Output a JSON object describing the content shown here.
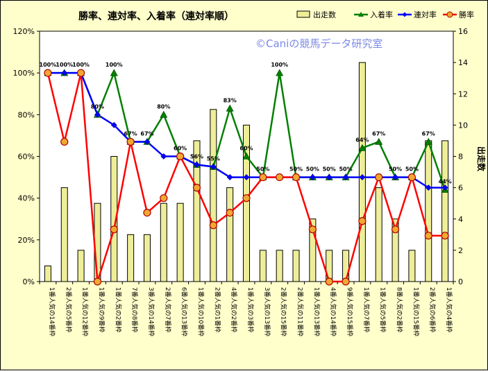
{
  "chart_data": {
    "type": "bar+line",
    "title": "勝率、連対率、入着率（連対率順）",
    "watermark": "©Caniの競馬データ研究室",
    "y2label": "出走数",
    "ylim": [
      0,
      120
    ],
    "y2lim": [
      0,
      16
    ],
    "yticks": [
      "0%",
      "20%",
      "40%",
      "60%",
      "80%",
      "100%",
      "120%"
    ],
    "y2ticks": [
      "0",
      "2",
      "4",
      "6",
      "8",
      "10",
      "12",
      "14",
      "16"
    ],
    "categories": [
      "1番人気の14番枠",
      "2番人気の5番枠",
      "1番人気の12番枠",
      "1番人気の9番枠",
      "1番人気の2番枠",
      "7番人気の8番枠",
      "3番人気の14番枠",
      "2番人気の7番枠",
      "6番人気の13番枠",
      "1番人気の10番枠",
      "2番人気の1番枠",
      "4番人気の2番枠",
      "1番人気の3番枠",
      "3番人気の13番枠",
      "2番人気の15番枠",
      "2番人気の11番枠",
      "1番人気の13番枠",
      "4番人気の14番枠",
      "9番人気の15番枠",
      "1番人気の7番枠",
      "1番人気の5番枠",
      "8番人気の2番枠",
      "1番人気の15番枠",
      "2番人気の6番枠",
      "1番人気の4番枠"
    ],
    "series": [
      {
        "name": "出走数",
        "kind": "bar",
        "axis": "right",
        "color": "#eeee99",
        "values": [
          1,
          6,
          2,
          5,
          8,
          3,
          3,
          5,
          5,
          9,
          11,
          6,
          10,
          2,
          2,
          2,
          4,
          2,
          2,
          14,
          6,
          4,
          2,
          9,
          9
        ]
      },
      {
        "name": "入着率",
        "kind": "line",
        "axis": "left",
        "color": "#008000",
        "values": [
          100,
          100,
          100,
          80,
          100,
          67,
          67,
          80,
          60,
          56,
          55,
          83,
          60,
          50,
          100,
          50,
          50,
          50,
          50,
          64,
          67,
          50,
          50,
          67,
          44
        ]
      },
      {
        "name": "連対率",
        "kind": "line",
        "axis": "left",
        "color": "#0000ff",
        "values": [
          100,
          100,
          100,
          80,
          75,
          67,
          67,
          60,
          60,
          56,
          55,
          50,
          50,
          50,
          50,
          50,
          50,
          50,
          50,
          50,
          50,
          50,
          50,
          45,
          45
        ]
      },
      {
        "name": "勝率",
        "kind": "line",
        "axis": "left",
        "color": "#ff0000",
        "values": [
          100,
          67,
          100,
          0,
          25,
          67,
          33,
          40,
          60,
          45,
          27,
          33,
          40,
          50,
          50,
          50,
          25,
          0,
          0,
          29,
          50,
          25,
          50,
          22,
          22
        ]
      }
    ],
    "data_labels": [
      "100%",
      "100%",
      "100%",
      "80%",
      "100%",
      "67%",
      "67%",
      "80%",
      "60%",
      "56%",
      "55%",
      "83%",
      "60%",
      "50%",
      "100%",
      "50%",
      "50%",
      "50%",
      "50%",
      "64%",
      "67%",
      "50%",
      "50%",
      "67%",
      "44%"
    ],
    "legend_position": "top-right",
    "grid": false
  }
}
